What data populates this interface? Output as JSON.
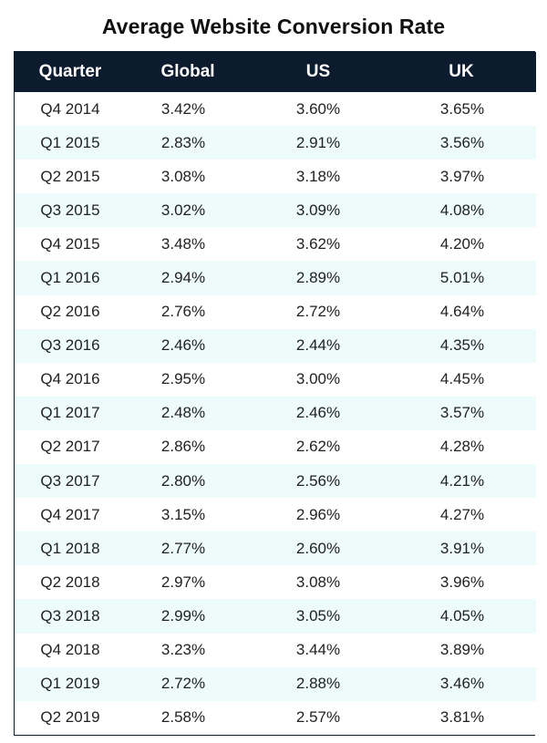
{
  "chart_data": {
    "type": "table",
    "title": "Average Website Conversion Rate",
    "columns": [
      "Quarter",
      "Global",
      "US",
      "UK"
    ],
    "rows": [
      [
        "Q4 2014",
        "3.42%",
        "3.60%",
        "3.65%"
      ],
      [
        "Q1 2015",
        "2.83%",
        "2.91%",
        "3.56%"
      ],
      [
        "Q2 2015",
        "3.08%",
        "3.18%",
        "3.97%"
      ],
      [
        "Q3 2015",
        "3.02%",
        "3.09%",
        "4.08%"
      ],
      [
        "Q4 2015",
        "3.48%",
        "3.62%",
        "4.20%"
      ],
      [
        "Q1 2016",
        "2.94%",
        "2.89%",
        "5.01%"
      ],
      [
        "Q2 2016",
        "2.76%",
        "2.72%",
        "4.64%"
      ],
      [
        "Q3 2016",
        "2.46%",
        "2.44%",
        "4.35%"
      ],
      [
        "Q4 2016",
        "2.95%",
        "3.00%",
        "4.45%"
      ],
      [
        "Q1 2017",
        "2.48%",
        "2.46%",
        "3.57%"
      ],
      [
        "Q2 2017",
        "2.86%",
        "2.62%",
        "4.28%"
      ],
      [
        "Q3 2017",
        "2.80%",
        "2.56%",
        "4.21%"
      ],
      [
        "Q4 2017",
        "3.15%",
        "2.96%",
        "4.27%"
      ],
      [
        "Q1 2018",
        "2.77%",
        "2.60%",
        "3.91%"
      ],
      [
        "Q2 2018",
        "2.97%",
        "3.08%",
        "3.96%"
      ],
      [
        "Q3 2018",
        "2.99%",
        "3.05%",
        "4.05%"
      ],
      [
        "Q4 2018",
        "3.23%",
        "3.44%",
        "3.89%"
      ],
      [
        "Q1 2019",
        "2.72%",
        "2.88%",
        "3.46%"
      ],
      [
        "Q2 2019",
        "2.58%",
        "2.57%",
        "3.81%"
      ]
    ]
  },
  "colors": {
    "header_background": "#0d1b2e",
    "header_text": "#ffffff",
    "stripe_background": "#eefbfb",
    "row_background": "#ffffff"
  }
}
